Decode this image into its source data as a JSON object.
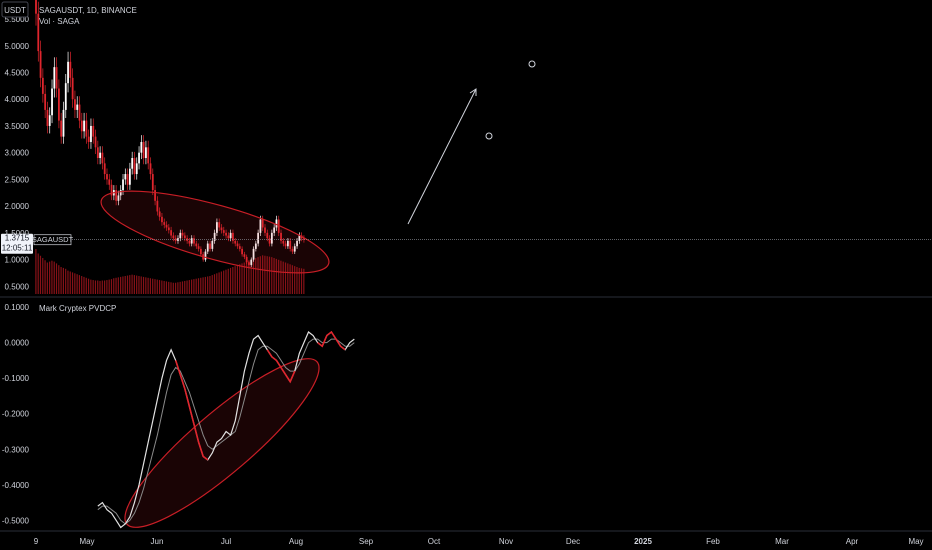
{
  "symbol": {
    "title": "SAGAUSDT, 1D, BINANCE",
    "volume_label": "Vol · SAGA",
    "currency_button": "USDT",
    "last_price": "1.3715",
    "countdown": "12:05:11",
    "price_tag": "SAGAUSDT"
  },
  "indicator": {
    "name": "Mark Cryptex PVDCP"
  },
  "colors": {
    "up": "#ffffff",
    "down": "#e0252d",
    "volume": "#a0151c",
    "fast_line": "#e2e2e2",
    "slow_line": "#8a8a8a",
    "ellipse": "#c81e26"
  },
  "chart_data": [
    {
      "type": "candlestick",
      "title": "SAGAUSDT, 1D, BINANCE",
      "y_ticks": [
        0.5,
        1.0,
        1.5,
        2.0,
        2.5,
        3.0,
        3.5,
        4.0,
        4.5,
        5.0,
        5.5
      ],
      "y_tick_labels": [
        "0.5000",
        "1.0000",
        "1.5000",
        "2.0000",
        "2.5000",
        "3.0000",
        "3.5000",
        "4.0000",
        "4.5000",
        "5.0000",
        "5.5000"
      ],
      "x_ticks": [
        "9",
        "May",
        "Jun",
        "Jul",
        "Aug",
        "Sep",
        "Oct",
        "Nov",
        "Dec",
        "2025",
        "Feb",
        "Mar",
        "Apr",
        "May"
      ],
      "ylim": [
        0.3,
        5.8
      ],
      "start_date": "2024-04-09",
      "last_close": 1.3715,
      "closes": [
        5.6,
        4.9,
        4.4,
        4.1,
        3.8,
        3.5,
        3.7,
        4.2,
        4.6,
        4.2,
        3.6,
        3.3,
        3.8,
        4.3,
        4.7,
        4.4,
        4.0,
        3.8,
        3.9,
        3.6,
        3.4,
        3.6,
        3.3,
        3.2,
        3.5,
        3.3,
        3.1,
        2.9,
        3.0,
        2.8,
        2.6,
        2.5,
        2.4,
        2.2,
        2.3,
        2.1,
        2.2,
        2.3,
        2.5,
        2.6,
        2.4,
        2.7,
        2.9,
        2.6,
        2.8,
        3.0,
        3.2,
        2.9,
        3.1,
        2.8,
        2.6,
        2.3,
        2.1,
        1.9,
        1.8,
        1.7,
        1.65,
        1.6,
        1.55,
        1.45,
        1.4,
        1.35,
        1.4,
        1.5,
        1.45,
        1.4,
        1.35,
        1.3,
        1.4,
        1.3,
        1.25,
        1.2,
        1.1,
        1.0,
        1.15,
        1.3,
        1.2,
        1.35,
        1.5,
        1.7,
        1.6,
        1.55,
        1.5,
        1.45,
        1.4,
        1.5,
        1.35,
        1.3,
        1.25,
        1.2,
        1.1,
        1.05,
        0.95,
        0.9,
        1.0,
        1.2,
        1.3,
        1.5,
        1.75,
        1.6,
        1.5,
        1.4,
        1.3,
        1.5,
        1.6,
        1.75,
        1.5,
        1.35,
        1.3,
        1.25,
        1.35,
        1.2,
        1.15,
        1.25,
        1.35,
        1.45,
        1.4,
        1.3715
      ],
      "volumes": [
        1.0,
        0.9,
        0.85,
        0.8,
        0.75,
        0.7,
        0.72,
        0.74,
        0.72,
        0.68,
        0.64,
        0.6,
        0.58,
        0.56,
        0.52,
        0.5,
        0.48,
        0.46,
        0.44,
        0.42,
        0.4,
        0.38,
        0.36,
        0.34,
        0.32,
        0.31,
        0.3,
        0.3,
        0.29,
        0.3,
        0.3,
        0.31,
        0.32,
        0.33,
        0.35,
        0.36,
        0.37,
        0.38,
        0.39,
        0.4,
        0.41,
        0.42,
        0.43,
        0.42,
        0.41,
        0.4,
        0.39,
        0.38,
        0.37,
        0.36,
        0.35,
        0.34,
        0.33,
        0.32,
        0.31,
        0.3,
        0.29,
        0.28,
        0.27,
        0.26,
        0.25,
        0.25,
        0.26,
        0.27,
        0.28,
        0.29,
        0.3,
        0.31,
        0.32,
        0.33,
        0.34,
        0.35,
        0.36,
        0.37,
        0.38,
        0.39,
        0.4,
        0.42,
        0.44,
        0.46,
        0.48,
        0.5,
        0.52,
        0.54,
        0.56,
        0.58,
        0.6,
        0.62,
        0.64,
        0.66,
        0.68,
        0.7,
        0.72,
        0.74,
        0.76,
        0.78,
        0.8,
        0.82,
        0.84,
        0.86,
        0.85,
        0.84,
        0.83,
        0.82,
        0.8,
        0.78,
        0.76,
        0.74,
        0.72,
        0.7,
        0.68,
        0.66,
        0.64,
        0.62,
        0.6,
        0.58,
        0.57,
        0.56
      ]
    },
    {
      "type": "line",
      "title": "Mark Cryptex PVDCP",
      "y_ticks": [
        0.1,
        0.0,
        -0.1,
        -0.2,
        -0.3,
        -0.4,
        -0.5
      ],
      "y_tick_labels": [
        "0.1000",
        "0.0000",
        "-0.1000",
        "-0.2000",
        "-0.3000",
        "-0.4000",
        "-0.5000"
      ],
      "ylim": [
        -0.53,
        0.12
      ],
      "series": [
        {
          "values": [
            -0.46,
            -0.45,
            -0.47,
            -0.48,
            -0.5,
            -0.52,
            -0.51,
            -0.49,
            -0.45,
            -0.4,
            -0.34,
            -0.28,
            -0.22,
            -0.16,
            -0.1,
            -0.05,
            -0.02,
            -0.05,
            -0.09,
            -0.13,
            -0.18,
            -0.23,
            -0.28,
            -0.32,
            -0.33,
            -0.31,
            -0.28,
            -0.27,
            -0.25,
            -0.26,
            -0.22,
            -0.15,
            -0.08,
            -0.03,
            0.01,
            0.02,
            0.0,
            -0.02,
            -0.04,
            -0.05,
            -0.07,
            -0.09,
            -0.11,
            -0.08,
            -0.03,
            0.0,
            0.03,
            0.02,
            0.0,
            -0.01,
            0.02,
            0.03,
            0.01,
            -0.01,
            -0.02,
            0.0,
            0.01
          ],
          "segments_down": [
            [
              17,
              24
            ],
            [
              37,
              43
            ],
            [
              48,
              54
            ]
          ]
        },
        {
          "values": [
            -0.47,
            -0.46,
            -0.46,
            -0.47,
            -0.48,
            -0.5,
            -0.51,
            -0.5,
            -0.48,
            -0.45,
            -0.41,
            -0.36,
            -0.31,
            -0.26,
            -0.2,
            -0.14,
            -0.09,
            -0.07,
            -0.08,
            -0.11,
            -0.14,
            -0.18,
            -0.22,
            -0.26,
            -0.29,
            -0.3,
            -0.29,
            -0.28,
            -0.27,
            -0.26,
            -0.25,
            -0.21,
            -0.16,
            -0.11,
            -0.06,
            -0.02,
            -0.01,
            -0.01,
            -0.02,
            -0.03,
            -0.05,
            -0.07,
            -0.08,
            -0.08,
            -0.06,
            -0.03,
            0.0,
            0.01,
            0.01,
            0.0,
            0.0,
            0.01,
            0.01,
            0.0,
            -0.01,
            -0.01,
            0.0
          ]
        }
      ]
    }
  ]
}
